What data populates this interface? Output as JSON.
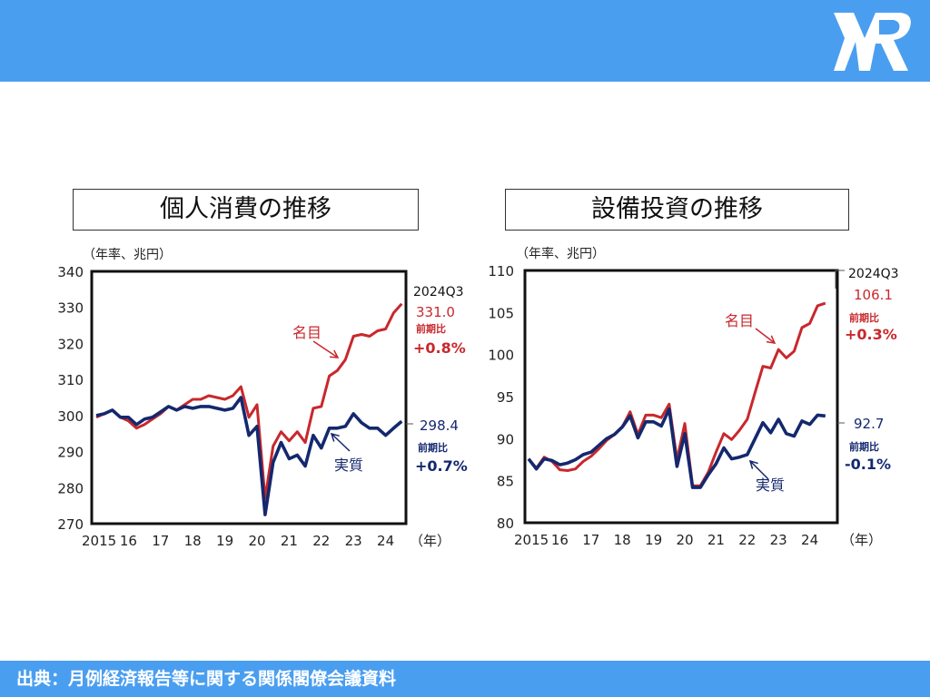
{
  "header": {
    "logo": "MR logo"
  },
  "footer": {
    "source": "出典：月例経済報告等に関する関係閣僚会議資料"
  },
  "colors": {
    "nominal": "#c8282c",
    "real": "#14286e",
    "header": "#4a9ef0"
  },
  "chart_data": [
    {
      "type": "line",
      "title": "個人消費の推移",
      "ylabel": "（年率、兆円）",
      "xlabel": "（年）",
      "ylim": [
        270,
        340
      ],
      "yticks": [
        "270",
        "280",
        "290",
        "300",
        "310",
        "320",
        "330",
        "340"
      ],
      "xticks": [
        "2015",
        "16",
        "17",
        "18",
        "19",
        "20",
        "21",
        "22",
        "23",
        "24"
      ],
      "x_start": "2015Q1",
      "x_end": "2024Q3",
      "frequency": "quarterly",
      "latest_label": "2024Q3",
      "series": [
        {
          "name": "名目",
          "color": "#c8282c",
          "latest": "331.0",
          "change_label": "前期比",
          "change": "+0.8%",
          "values": [
            299.5,
            300.5,
            301.5,
            299.5,
            298.5,
            296.5,
            297.5,
            299,
            300.5,
            302.5,
            301.5,
            303,
            304.5,
            304.5,
            305.5,
            305,
            304.5,
            305.5,
            308,
            299.5,
            303,
            277,
            291.5,
            295.5,
            293,
            295.5,
            292.5,
            302,
            302.5,
            311,
            312.5,
            315.5,
            322,
            322.5,
            322,
            323.5,
            324,
            328.5,
            331.0
          ]
        },
        {
          "name": "実質",
          "color": "#14286e",
          "latest": "298.4",
          "change_label": "前期比",
          "change": "+0.7%",
          "values": [
            300,
            300.5,
            301.5,
            299.5,
            299.5,
            297.5,
            299,
            299.5,
            301,
            302.5,
            301.5,
            302.5,
            302,
            302.5,
            302.5,
            302,
            301.5,
            302,
            305,
            294.5,
            297,
            272.5,
            287,
            292.5,
            288,
            289,
            286,
            294.5,
            291,
            296.5,
            296.5,
            297,
            300.5,
            298,
            296.5,
            296.5,
            294.5,
            296.5,
            298.4
          ]
        }
      ]
    },
    {
      "type": "line",
      "title": "設備投資の推移",
      "ylabel": "（年率、兆円）",
      "xlabel": "（年）",
      "ylim": [
        80,
        110
      ],
      "yticks": [
        "80",
        "85",
        "90",
        "95",
        "100",
        "105",
        "110"
      ],
      "xticks": [
        "2015",
        "16",
        "17",
        "18",
        "19",
        "20",
        "21",
        "22",
        "23",
        "24"
      ],
      "x_start": "2015Q1",
      "x_end": "2024Q3",
      "frequency": "quarterly",
      "latest_label": "2024Q3",
      "series": [
        {
          "name": "名目",
          "color": "#c8282c",
          "latest": "106.1",
          "change_label": "前期比",
          "change": "+0.3%",
          "values": [
            87.6,
            86.5,
            87.8,
            87.3,
            86.3,
            86.2,
            86.4,
            87.3,
            87.9,
            88.8,
            89.8,
            90.5,
            91.4,
            93.2,
            90.5,
            92.8,
            92.8,
            92.5,
            94.1,
            87.5,
            91.8,
            84.4,
            84.4,
            86,
            88.4,
            90.6,
            89.9,
            91,
            92.3,
            95.5,
            98.6,
            98.4,
            100.6,
            99.6,
            100.4,
            103.2,
            103.7,
            105.8,
            106.1
          ]
        },
        {
          "name": "実質",
          "color": "#14286e",
          "latest": "92.7",
          "change_label": "前期比",
          "change": "-0.1%",
          "values": [
            87.6,
            86.4,
            87.6,
            87.4,
            86.9,
            87.1,
            87.5,
            88.1,
            88.4,
            89.2,
            90,
            90.5,
            91.4,
            92.7,
            90.1,
            92,
            92,
            91.5,
            93.5,
            86.7,
            90.6,
            84.2,
            84.2,
            85.7,
            87,
            88.9,
            87.6,
            87.8,
            88.1,
            90,
            91.9,
            90.7,
            92.3,
            90.6,
            90.3,
            92.1,
            91.7,
            92.8,
            92.7
          ]
        }
      ]
    }
  ]
}
